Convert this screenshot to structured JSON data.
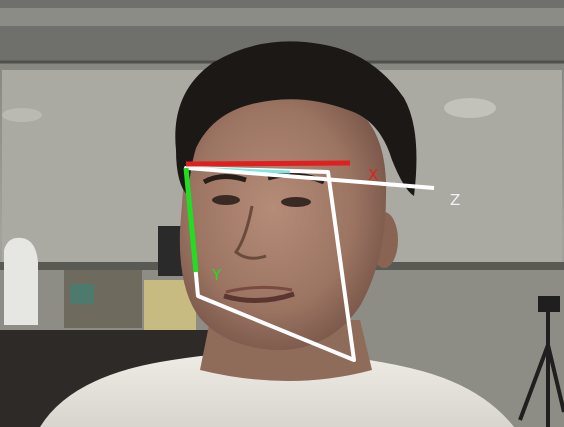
{
  "overlay": {
    "axis_x_label": "X",
    "axis_y_label": "Y",
    "axis_z_label": "Z",
    "colors": {
      "axis_x": "#e02020",
      "axis_y": "#22dd22",
      "axis_z": "#ffffff",
      "axis_x_label": "#e02020",
      "axis_y_label": "#22dd22",
      "axis_z_label": "#f2f2f2",
      "box_outline": "#ffffff",
      "edge_highlight": "#7ee6e6"
    }
  },
  "scene": {
    "subject": "person-head-pose",
    "colors": {
      "wall": "#9c9c94",
      "ceiling": "#7c7d78",
      "hair": "#1b1816",
      "skin": "#a77f6c",
      "shirt": "#e8e6df"
    }
  }
}
